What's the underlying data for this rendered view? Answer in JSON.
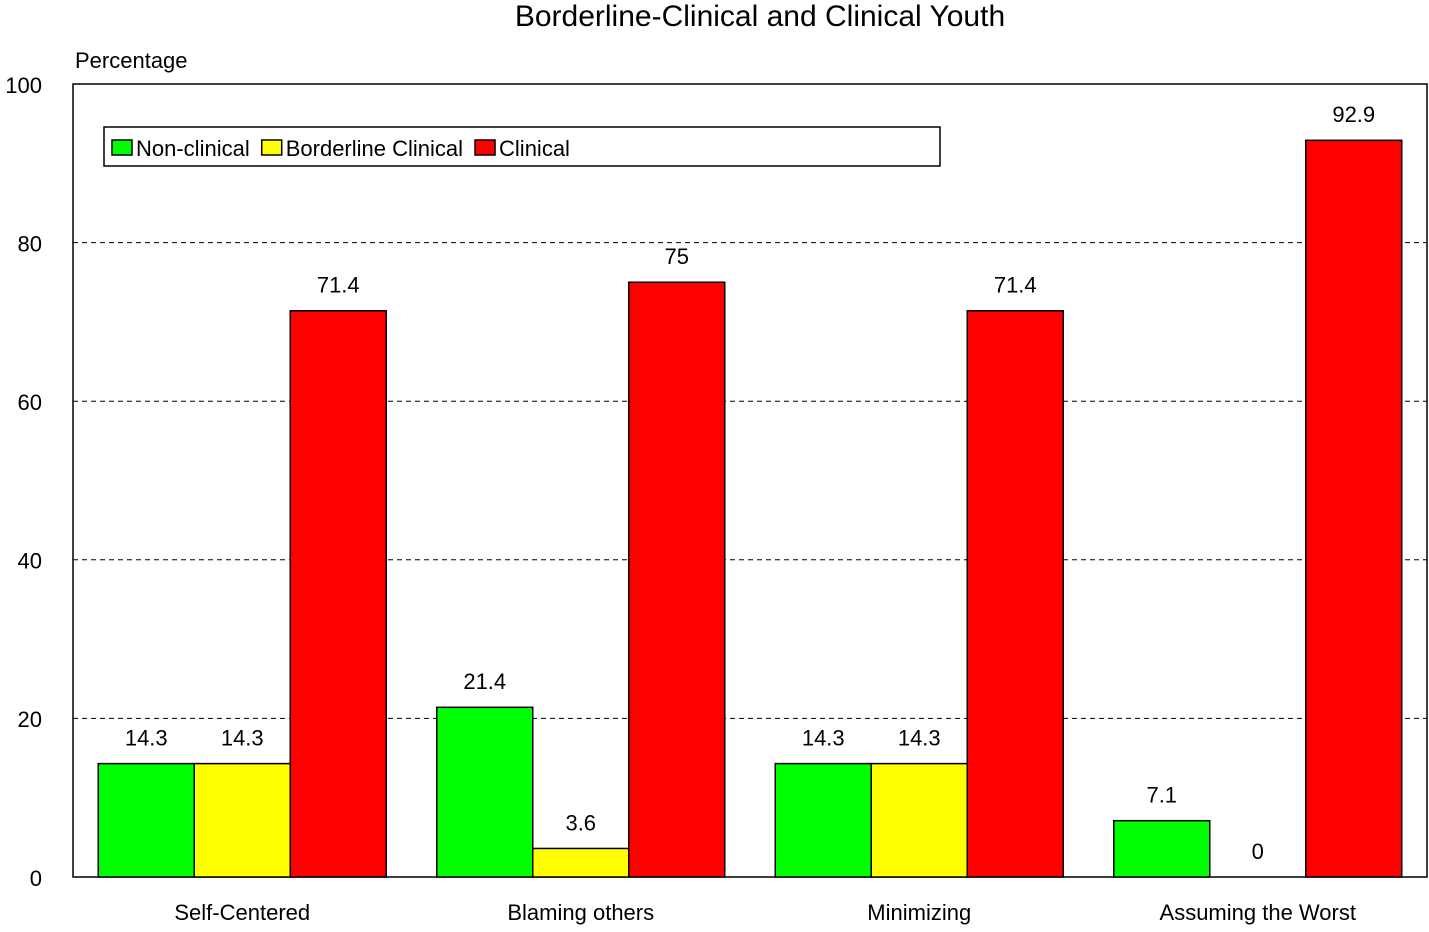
{
  "chart_data": {
    "type": "bar",
    "title": "Borderline-Clinical and Clinical Youth",
    "y_label": "Percentage",
    "categories": [
      "Self-Centered",
      "Blaming others",
      "Minimizing",
      "Assuming the Worst"
    ],
    "series": [
      {
        "name": "Non-clinical",
        "color": "#00ff00",
        "values": [
          14.3,
          21.4,
          14.3,
          7.1
        ]
      },
      {
        "name": "Borderline Clinical",
        "color": "#ffff00",
        "values": [
          14.3,
          3.6,
          14.3,
          0
        ]
      },
      {
        "name": "Clinical",
        "color": "#ff0000",
        "values": [
          71.4,
          75,
          71.4,
          92.9
        ]
      }
    ],
    "ylim": [
      0,
      100
    ],
    "yticks": [
      0,
      20,
      40,
      60,
      80,
      100
    ],
    "grid": true
  }
}
